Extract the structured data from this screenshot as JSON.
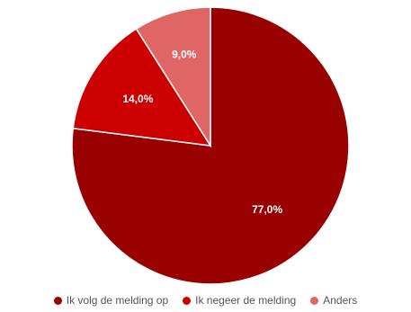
{
  "chart_data": {
    "type": "pie",
    "slices": [
      {
        "label": "Ik volg de melding op",
        "value": 77.0,
        "display": "77,0%",
        "color": "#990000"
      },
      {
        "label": "Ik negeer de melding",
        "value": 14.0,
        "display": "14,0%",
        "color": "#cc0000"
      },
      {
        "label": "Anders",
        "value": 9.0,
        "display": "9,0%",
        "color": "#e06666"
      }
    ],
    "legend_position": "bottom"
  }
}
